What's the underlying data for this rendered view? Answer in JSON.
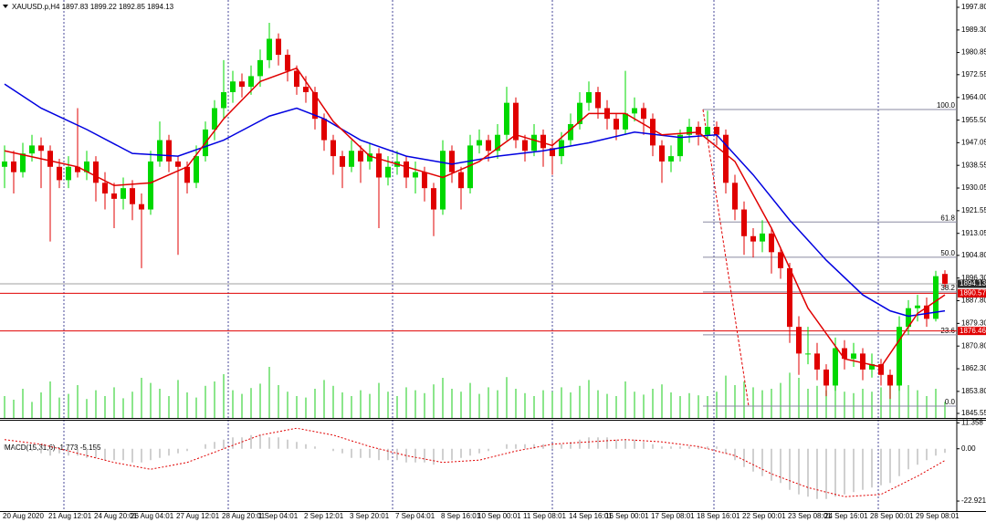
{
  "chart_data": {
    "type": "candlestick",
    "symbol": "XAUUSD.p,H4",
    "categories": [
      "20 Aug 2020",
      null,
      null,
      null,
      null,
      "21 Aug 12:01",
      null,
      null,
      null,
      null,
      "24 Aug 20:01",
      null,
      null,
      null,
      "26 Aug 04:01",
      null,
      null,
      null,
      null,
      "27 Aug 12:01",
      null,
      null,
      null,
      null,
      "28 Aug 20:01",
      null,
      null,
      null,
      "1 Sep 04:01",
      null,
      null,
      null,
      null,
      "2 Sep 12:01",
      null,
      null,
      null,
      null,
      "3 Sep 20:01",
      null,
      null,
      null,
      null,
      "7 Sep 04:01",
      null,
      null,
      null,
      null,
      "8 Sep 16:01",
      null,
      null,
      null,
      "10 Sep 00:01",
      null,
      null,
      null,
      null,
      "11 Sep 08:01",
      null,
      null,
      null,
      null,
      "14 Sep 16:01",
      null,
      null,
      null,
      "16 Sep 00:01",
      null,
      null,
      null,
      null,
      "17 Sep 08:01",
      null,
      null,
      null,
      null,
      "18 Sep 16:01",
      null,
      null,
      null,
      null,
      "22 Sep 00:01",
      null,
      null,
      null,
      null,
      "23 Sep 08:01",
      null,
      null,
      null,
      "24 Sep 16:01",
      null,
      null,
      null,
      null,
      "28 Sep 00:01",
      null,
      null,
      null,
      null,
      "29 Sep 08:01",
      null,
      null,
      null
    ],
    "candles": [
      [
        1938,
        1946,
        1930,
        1940
      ],
      [
        1940,
        1944,
        1928,
        1936
      ],
      [
        1936,
        1947,
        1934,
        1943
      ],
      [
        1943,
        1950,
        1940,
        1946
      ],
      [
        1946,
        1949,
        1930,
        1944
      ],
      [
        1944,
        1946,
        1910,
        1938
      ],
      [
        1938,
        1941,
        1930,
        1933
      ],
      [
        1933,
        1942,
        1930,
        1938
      ],
      [
        1938,
        1960,
        1934,
        1936
      ],
      [
        1936,
        1944,
        1933,
        1940
      ],
      [
        1940,
        1942,
        1925,
        1932
      ],
      [
        1932,
        1936,
        1922,
        1928
      ],
      [
        1928,
        1932,
        1915,
        1926
      ],
      [
        1926,
        1934,
        1922,
        1930
      ],
      [
        1930,
        1933,
        1918,
        1924
      ],
      [
        1924,
        1928,
        1900,
        1922
      ],
      [
        1922,
        1944,
        1920,
        1940
      ],
      [
        1940,
        1955,
        1938,
        1948
      ],
      [
        1948,
        1950,
        1936,
        1940
      ],
      [
        1940,
        1942,
        1905,
        1938
      ],
      [
        1938,
        1940,
        1928,
        1932
      ],
      [
        1932,
        1946,
        1930,
        1942
      ],
      [
        1942,
        1955,
        1940,
        1952
      ],
      [
        1952,
        1963,
        1948,
        1960
      ],
      [
        1960,
        1978,
        1956,
        1966
      ],
      [
        1966,
        1974,
        1962,
        1970
      ],
      [
        1970,
        1973,
        1964,
        1968
      ],
      [
        1968,
        1976,
        1965,
        1972
      ],
      [
        1972,
        1982,
        1968,
        1978
      ],
      [
        1978,
        1992,
        1975,
        1986
      ],
      [
        1986,
        1988,
        1976,
        1980
      ],
      [
        1980,
        1982,
        1970,
        1974
      ],
      [
        1974,
        1976,
        1965,
        1968
      ],
      [
        1968,
        1972,
        1962,
        1966
      ],
      [
        1966,
        1968,
        1952,
        1956
      ],
      [
        1956,
        1958,
        1944,
        1948
      ],
      [
        1948,
        1950,
        1935,
        1942
      ],
      [
        1942,
        1944,
        1930,
        1938
      ],
      [
        1938,
        1948,
        1936,
        1944
      ],
      [
        1944,
        1946,
        1932,
        1940
      ],
      [
        1940,
        1947,
        1937,
        1943
      ],
      [
        1943,
        1945,
        1915,
        1934
      ],
      [
        1934,
        1942,
        1931,
        1938
      ],
      [
        1938,
        1944,
        1935,
        1940
      ],
      [
        1940,
        1942,
        1930,
        1934
      ],
      [
        1934,
        1940,
        1928,
        1936
      ],
      [
        1936,
        1938,
        1925,
        1930
      ],
      [
        1930,
        1932,
        1912,
        1922
      ],
      [
        1922,
        1948,
        1920,
        1944
      ],
      [
        1944,
        1946,
        1932,
        1936
      ],
      [
        1936,
        1938,
        1922,
        1930
      ],
      [
        1930,
        1950,
        1928,
        1946
      ],
      [
        1946,
        1952,
        1943,
        1948
      ],
      [
        1948,
        1950,
        1940,
        1944
      ],
      [
        1944,
        1954,
        1941,
        1950
      ],
      [
        1950,
        1968,
        1948,
        1962
      ],
      [
        1962,
        1964,
        1945,
        1948
      ],
      [
        1948,
        1950,
        1940,
        1944
      ],
      [
        1944,
        1954,
        1942,
        1950
      ],
      [
        1950,
        1952,
        1938,
        1945
      ],
      [
        1945,
        1948,
        1935,
        1942
      ],
      [
        1942,
        1951,
        1939,
        1948
      ],
      [
        1948,
        1958,
        1946,
        1954
      ],
      [
        1954,
        1966,
        1952,
        1962
      ],
      [
        1962,
        1970,
        1959,
        1966
      ],
      [
        1966,
        1968,
        1956,
        1960
      ],
      [
        1960,
        1963,
        1952,
        1956
      ],
      [
        1956,
        1958,
        1948,
        1952
      ],
      [
        1952,
        1974,
        1950,
        1958
      ],
      [
        1958,
        1964,
        1955,
        1960
      ],
      [
        1960,
        1962,
        1950,
        1956
      ],
      [
        1956,
        1958,
        1942,
        1946
      ],
      [
        1946,
        1948,
        1932,
        1940
      ],
      [
        1940,
        1946,
        1936,
        1942
      ],
      [
        1942,
        1952,
        1940,
        1950
      ],
      [
        1950,
        1956,
        1947,
        1953
      ],
      [
        1953,
        1955,
        1946,
        1950
      ],
      [
        1950,
        1959,
        1948,
        1953
      ],
      [
        1953,
        1955,
        1946,
        1950
      ],
      [
        1950,
        1952,
        1928,
        1932
      ],
      [
        1932,
        1935,
        1918,
        1922
      ],
      [
        1922,
        1925,
        1905,
        1912
      ],
      [
        1912,
        1915,
        1904,
        1910
      ],
      [
        1910,
        1918,
        1906,
        1913
      ],
      [
        1913,
        1915,
        1898,
        1906
      ],
      [
        1906,
        1908,
        1896,
        1900
      ],
      [
        1900,
        1902,
        1872,
        1878
      ],
      [
        1878,
        1882,
        1860,
        1868
      ],
      [
        1868,
        1878,
        1864,
        1868
      ],
      [
        1868,
        1872,
        1858,
        1862
      ],
      [
        1862,
        1864,
        1852,
        1856
      ],
      [
        1856,
        1874,
        1854,
        1870
      ],
      [
        1870,
        1873,
        1862,
        1866
      ],
      [
        1866,
        1872,
        1863,
        1868
      ],
      [
        1868,
        1870,
        1858,
        1862
      ],
      [
        1862,
        1868,
        1859,
        1864
      ],
      [
        1864,
        1866,
        1856,
        1860
      ],
      [
        1860,
        1862,
        1851,
        1856
      ],
      [
        1856,
        1882,
        1854,
        1878
      ],
      [
        1878,
        1888,
        1875,
        1885
      ],
      [
        1885,
        1890,
        1880,
        1886
      ],
      [
        1886,
        1889,
        1878,
        1881
      ],
      [
        1881,
        1899,
        1880,
        1897
      ],
      [
        1897.83,
        1899.22,
        1892.85,
        1894.13
      ]
    ],
    "up_color": "#00d800",
    "down_color": "#e00000",
    "volumes": [
      30,
      25,
      40,
      22,
      35,
      50,
      28,
      33,
      45,
      26,
      38,
      30,
      42,
      27,
      36,
      55,
      48,
      40,
      30,
      52,
      35,
      28,
      44,
      50,
      60,
      38,
      33,
      41,
      47,
      70,
      45,
      36,
      30,
      28,
      40,
      52,
      44,
      35,
      30,
      38,
      33,
      48,
      36,
      30,
      42,
      38,
      34,
      46,
      55,
      40,
      36,
      48,
      33,
      42,
      38,
      56,
      40,
      34,
      30,
      38,
      36,
      42,
      35,
      44,
      52,
      38,
      33,
      30,
      50,
      36,
      32,
      40,
      46,
      35,
      30,
      34,
      31,
      30,
      36,
      58,
      45,
      50,
      42,
      38,
      40,
      48,
      62,
      55,
      40,
      44,
      38,
      45,
      36,
      34,
      40,
      36,
      42,
      48,
      60,
      45,
      38,
      30,
      40,
      22
    ],
    "volume_lim": [
      0,
      100
    ],
    "volume_color": "#66dd66",
    "ma_fast": {
      "color": "#e00000",
      "x": [
        0,
        4,
        8,
        12,
        16,
        20,
        24,
        28,
        32,
        36,
        40,
        44,
        48,
        52,
        56,
        60,
        64,
        68,
        72,
        76,
        80,
        84,
        88,
        92,
        96,
        100,
        103
      ],
      "values": [
        1944,
        1941,
        1938,
        1931,
        1932,
        1938,
        1956,
        1970,
        1975,
        1955,
        1942,
        1938,
        1934,
        1940,
        1950,
        1946,
        1958,
        1958,
        1950,
        1951,
        1940,
        1915,
        1885,
        1866,
        1863,
        1883,
        1890
      ]
    },
    "ma_slow": {
      "color": "#0000e0",
      "x": [
        0,
        4,
        9,
        14,
        19,
        24,
        29,
        32,
        35,
        39,
        44,
        49,
        54,
        59,
        64,
        69,
        74,
        78,
        82,
        86,
        90,
        94,
        97,
        99,
        103
      ],
      "values": [
        1969,
        1960,
        1952,
        1943,
        1942,
        1948,
        1957,
        1960,
        1956,
        1948,
        1942,
        1939,
        1942,
        1944,
        1947,
        1951,
        1949,
        1950,
        1935,
        1918,
        1903,
        1890,
        1884,
        1882,
        1884
      ]
    },
    "ylim": [
      1843.84,
      2000.54
    ],
    "yticks": [
      {
        "value": 1997.8,
        "label": "1997.80"
      },
      {
        "value": 1989.3,
        "label": "1989.30"
      },
      {
        "value": 1980.85,
        "label": "1980.85"
      },
      {
        "value": 1972.55,
        "label": "1972.55"
      },
      {
        "value": 1964,
        "label": "1964.00"
      },
      {
        "value": 1955.5,
        "label": "1955.50"
      },
      {
        "value": 1947.05,
        "label": "1947.05"
      },
      {
        "value": 1938.55,
        "label": "1938.55"
      },
      {
        "value": 1930.05,
        "label": "1930.05"
      },
      {
        "value": 1921.55,
        "label": "1921.55"
      },
      {
        "value": 1913.05,
        "label": "1913.05"
      },
      {
        "value": 1904.8,
        "label": "1904.80"
      },
      {
        "value": 1896.3,
        "label": "1896.30"
      },
      {
        "value": 1887.8,
        "label": "1887.80"
      },
      {
        "value": 1879.3,
        "label": "1879.30"
      },
      {
        "value": 1870.8,
        "label": "1870.80"
      },
      {
        "value": 1862.3,
        "label": "1862.30"
      },
      {
        "value": 1853.8,
        "label": "1853.80"
      },
      {
        "value": 1845.55,
        "label": "1845.55"
      }
    ],
    "fib_levels": [
      {
        "value": 100,
        "label": "100.0",
        "price": 1959.5
      },
      {
        "value": 61.8,
        "label": "61.8",
        "price": 1917.3
      },
      {
        "value": 50,
        "label": "50.0",
        "price": 1904.1
      },
      {
        "value": 38.2,
        "label": "38.2",
        "price": 1891.1
      },
      {
        "value": 23.6,
        "label": "23.6",
        "price": 1875.0
      },
      {
        "value": 0,
        "label": "0.0",
        "price": 1848.3
      }
    ],
    "price_lines": [
      {
        "value": 1890.57,
        "color": "#e00000"
      },
      {
        "value": 1876.46,
        "color": "#e00000"
      }
    ],
    "macd": {
      "label": "MACD(15,31,6)",
      "histogram": [
        2,
        1,
        0,
        -1,
        -2,
        -3,
        -2,
        -3,
        -3,
        -4,
        -4,
        -5,
        -5,
        -5,
        -6,
        -6,
        -5,
        -4,
        -3,
        -2,
        -1,
        0,
        2,
        3,
        4,
        5,
        5,
        6,
        6,
        5,
        5,
        4,
        3,
        2,
        1,
        0,
        -1,
        -2,
        -4,
        -4,
        -4,
        -5,
        -5,
        -5,
        -6,
        -6,
        -6,
        -7,
        -5,
        -5,
        -4,
        -3,
        -2,
        -1,
        0,
        2,
        2,
        2,
        2,
        2,
        2,
        2,
        3,
        4,
        5,
        5,
        5,
        4,
        4,
        4,
        3,
        2,
        1,
        1,
        1,
        1,
        1,
        1,
        1,
        -2,
        -5,
        -8,
        -10,
        -12,
        -14,
        -15,
        -18,
        -20,
        -21,
        -22,
        -22,
        -21,
        -20,
        -19,
        -18,
        -17,
        -16,
        -15,
        -12,
        -9,
        -7,
        -5,
        -3,
        -1.773
      ],
      "histogram_color": "#c0c0c0",
      "signal": {
        "color": "#e00000",
        "x": [
          0,
          4,
          8,
          12,
          16,
          20,
          24,
          28,
          32,
          36,
          40,
          44,
          48,
          52,
          56,
          60,
          64,
          68,
          72,
          76,
          80,
          84,
          88,
          92,
          96,
          100,
          103
        ],
        "values": [
          4,
          2,
          -2,
          -6,
          -9,
          -6,
          0,
          6,
          9,
          6,
          1,
          -3,
          -6,
          -5,
          -1,
          2,
          3,
          4,
          3,
          1,
          -3,
          -11,
          -17,
          -21,
          -20,
          -12,
          -5.155
        ]
      },
      "ylim": [
        -27.3,
        12.3
      ],
      "yticks": [
        11.358,
        {
          "value": 0,
          "label": "0.00"
        },
        -22.921
      ]
    }
  }
}
